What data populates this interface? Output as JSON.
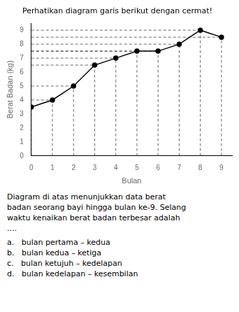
{
  "chart_data": {
    "type": "line",
    "title": "Perhatikan diagram garis berikut dengan cermat!",
    "xlabel": "Bulan",
    "ylabel": "Berat Badan (kg)",
    "x": [
      0,
      1,
      2,
      3,
      4,
      5,
      6,
      7,
      8,
      9
    ],
    "values": [
      3.5,
      4,
      5,
      6.5,
      7,
      7.5,
      7.5,
      8,
      9,
      8.5
    ],
    "color": "#000000",
    "marker": "circle",
    "xlim": [
      0,
      9.5
    ],
    "ylim": [
      0,
      9.5
    ],
    "xticks": [
      0,
      1,
      2,
      3,
      4,
      5,
      6,
      7,
      8,
      9
    ],
    "yticks": [
      0,
      1,
      2,
      3,
      4,
      5,
      6,
      7,
      8,
      9
    ],
    "grid": false,
    "annotations": [
      "Diagram di atas menunjukkan data berat",
      "badan seorang bayi hingga bulan ke-9. Selang",
      "waktu kenaikan berat badan terbesar adalah",
      "....",
      "a.   bulan pertama – kedua",
      "b.   bulan kedua – ketiga",
      "c.   bulan ketujuh – kedelapan",
      "d.   bulan kedelapan – kesembilan"
    ]
  }
}
